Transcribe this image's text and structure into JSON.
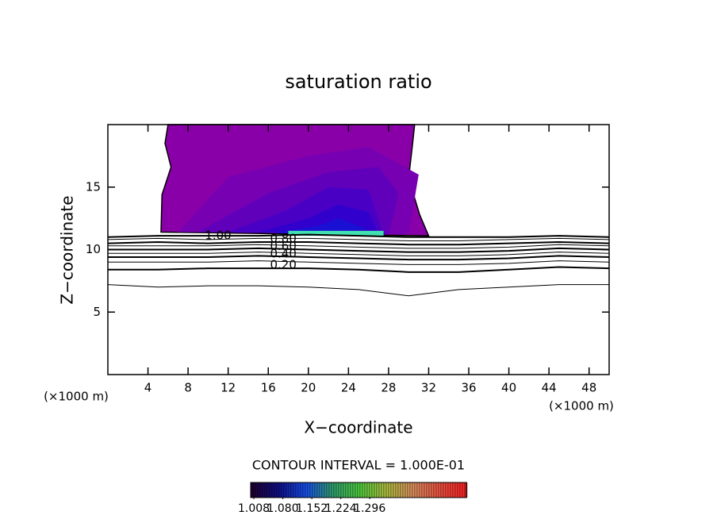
{
  "chart_data": {
    "type": "contour",
    "title": "saturation ratio",
    "xlabel": "X−coordinate",
    "ylabel": "Z−coordinate",
    "x_unit": "(×1000 m)",
    "y_unit": "(×1000 m)",
    "note": "CONTOUR INTERVAL = 1.000E-01",
    "xlim": [
      0,
      50
    ],
    "ylim": [
      0,
      20
    ],
    "xticks": [
      4,
      8,
      12,
      16,
      20,
      24,
      28,
      32,
      36,
      40,
      44,
      48
    ],
    "yticks": [
      5,
      10,
      15
    ],
    "filled_regions": [
      {
        "color": "#8a00a8",
        "x": [
          6.0,
          5.7,
          6.3,
          5.4,
          5.3,
          32.0,
          31.1,
          30.0,
          30.4,
          30.6
        ],
        "y": [
          20,
          18.5,
          16.6,
          14.4,
          11.4,
          11.1,
          12.8,
          15.7,
          18.5,
          20
        ]
      },
      {
        "color": "#7600b2",
        "x": [
          7,
          12,
          20,
          26,
          31,
          30,
          8
        ],
        "y": [
          11.4,
          15.8,
          17.5,
          18.2,
          16,
          11.2,
          11.4
        ]
      },
      {
        "color": "#6000bb",
        "x": [
          9,
          16,
          22,
          27,
          29,
          28,
          9
        ],
        "y": [
          11.4,
          14.5,
          16.2,
          16.6,
          14.5,
          11.2,
          11.4
        ]
      },
      {
        "color": "#4a00c4",
        "x": [
          12,
          18,
          22,
          26,
          27.5,
          12
        ],
        "y": [
          11.4,
          13.2,
          15.0,
          14.8,
          11.2,
          11.4
        ]
      },
      {
        "color": "#3200cc",
        "x": [
          15,
          20,
          23,
          26,
          27,
          15
        ],
        "y": [
          11.4,
          12.5,
          13.6,
          13.0,
          11.2,
          11.4
        ]
      },
      {
        "color": "#1a10d4",
        "x": [
          17,
          21,
          23,
          26,
          17
        ],
        "y": [
          11.4,
          11.9,
          12.5,
          11.6,
          11.3
        ]
      },
      {
        "color": "#40e0b0",
        "x": [
          18,
          27.5,
          27.5,
          18
        ],
        "y": [
          11.5,
          11.5,
          11.1,
          11.1
        ]
      }
    ],
    "contour_x": [
      0,
      5,
      10,
      15,
      20,
      25,
      30,
      35,
      40,
      45,
      50
    ],
    "contours": [
      {
        "level": 0.1,
        "y": [
          7.2,
          7.0,
          7.1,
          7.1,
          7.0,
          6.8,
          6.3,
          6.8,
          7.0,
          7.2,
          7.2
        ]
      },
      {
        "level": 0.2,
        "label": "0.20",
        "y": [
          8.4,
          8.4,
          8.5,
          8.5,
          8.5,
          8.4,
          8.2,
          8.2,
          8.4,
          8.6,
          8.5
        ]
      },
      {
        "level": 0.3,
        "y": [
          9.0,
          9.0,
          9.0,
          9.1,
          9.0,
          8.9,
          8.8,
          8.8,
          8.9,
          9.1,
          9.0
        ]
      },
      {
        "level": 0.4,
        "label": "0.40",
        "y": [
          9.4,
          9.4,
          9.4,
          9.5,
          9.4,
          9.3,
          9.2,
          9.2,
          9.3,
          9.5,
          9.4
        ]
      },
      {
        "level": 0.5,
        "y": [
          9.7,
          9.7,
          9.7,
          9.8,
          9.7,
          9.6,
          9.5,
          9.5,
          9.6,
          9.8,
          9.7
        ]
      },
      {
        "level": 0.6,
        "label": "0.60",
        "y": [
          10.0,
          10.0,
          10.0,
          10.1,
          10.0,
          9.9,
          9.8,
          9.8,
          9.9,
          10.1,
          10.0
        ]
      },
      {
        "level": 0.7,
        "y": [
          10.3,
          10.3,
          10.3,
          10.4,
          10.3,
          10.2,
          10.1,
          10.1,
          10.2,
          10.4,
          10.3
        ]
      },
      {
        "level": 0.8,
        "label": "0.80",
        "y": [
          10.5,
          10.6,
          10.5,
          10.6,
          10.6,
          10.5,
          10.4,
          10.4,
          10.5,
          10.6,
          10.5
        ]
      },
      {
        "level": 0.9,
        "y": [
          10.8,
          10.9,
          10.8,
          10.9,
          10.9,
          10.8,
          10.7,
          10.7,
          10.8,
          10.9,
          10.8
        ]
      },
      {
        "level": 1.0,
        "label": "1.00",
        "y": [
          11.0,
          11.1,
          11.1,
          11.1,
          11.2,
          11.1,
          11.0,
          11.0,
          11.0,
          11.1,
          11.0
        ]
      }
    ],
    "colorbar": {
      "lim": [
        1.0,
        1.536
      ],
      "ticks": [
        1.008,
        {
          "value": 1.08,
          "label": "1.080"
        },
        1.152,
        1.224,
        1.296
      ],
      "colormap": [
        "#200030",
        "#10108a",
        "#1850f0",
        "#30a070",
        "#50d040",
        "#b0c040",
        "#e09060",
        "#f05040",
        "#ff2020"
      ]
    }
  }
}
